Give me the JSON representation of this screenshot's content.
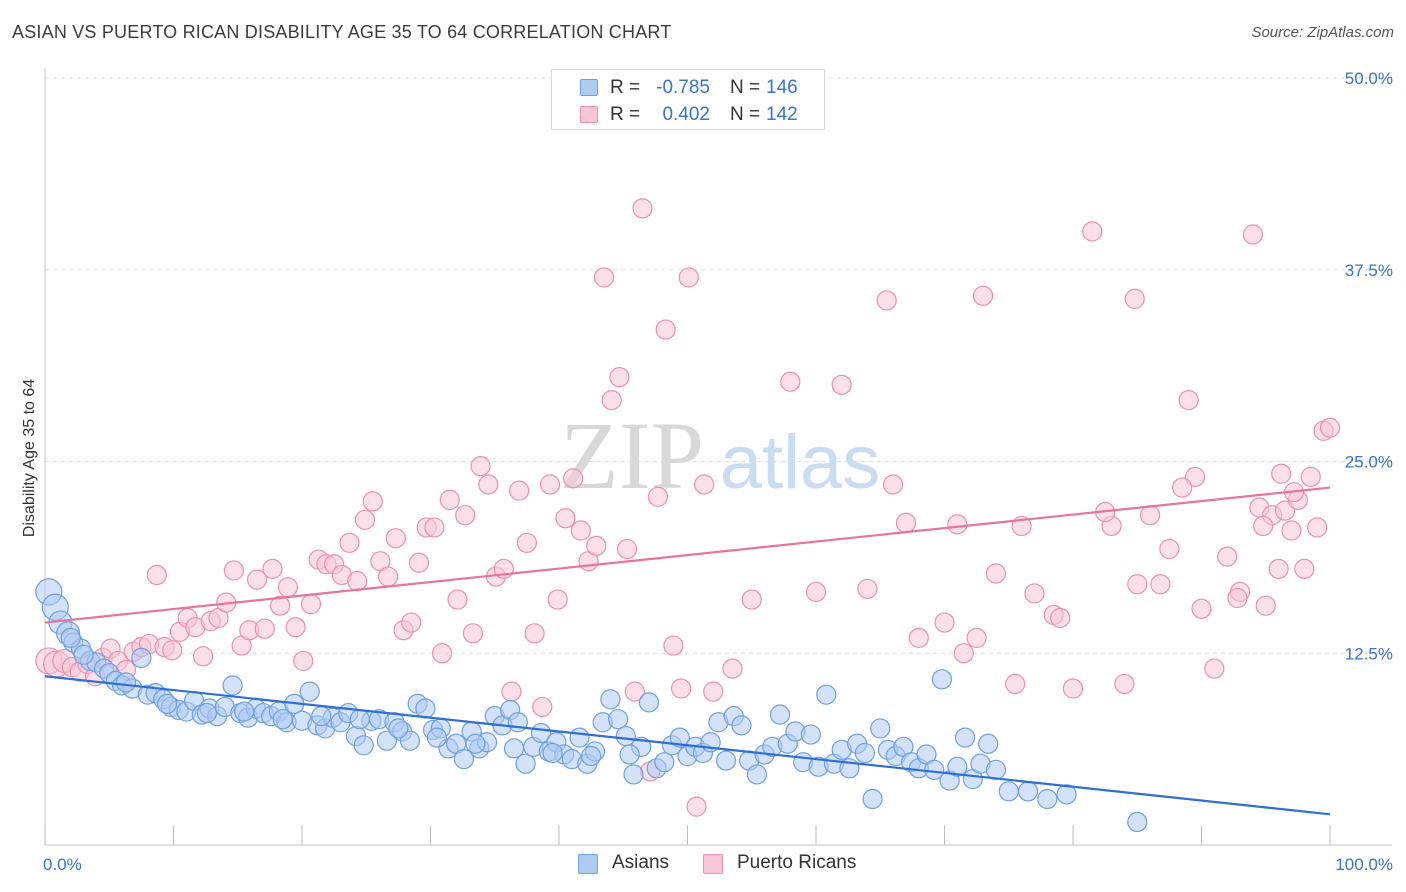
{
  "title": "ASIAN VS PUERTO RICAN DISABILITY AGE 35 TO 64 CORRELATION CHART",
  "source": "Source: ZipAtlas.com",
  "watermark": {
    "zip": "ZIP",
    "atlas": "atlas"
  },
  "legend": {
    "r_label": "R =",
    "n_label": "N =",
    "asians": {
      "r": "-0.785",
      "n": "146"
    },
    "puerto_ricans": {
      "r": "0.402",
      "n": "142"
    }
  },
  "colors": {
    "asians_fill": "#aecbf2",
    "asians_stroke": "#6fa0e0",
    "asians_line": "#2f6fd3",
    "pr_fill": "#f8c6d6",
    "pr_stroke": "#ee8fb0",
    "pr_line": "#e8739d",
    "tick_text": "#3a73c8",
    "grid": "#dddddd"
  },
  "chart_data": {
    "type": "scatter",
    "title": "ASIAN VS PUERTO RICAN DISABILITY AGE 35 TO 64 CORRELATION CHART",
    "xlabel": "",
    "ylabel": "Disability Age 35 to 64",
    "xlim": [
      0,
      100
    ],
    "ylim": [
      0,
      50
    ],
    "x_tick_labels": [
      "0.0%",
      "100.0%"
    ],
    "y_tick_labels": [
      "12.5%",
      "25.0%",
      "37.5%",
      "50.0%"
    ],
    "y_ticks": [
      12.5,
      25.0,
      37.5,
      50.0
    ],
    "grid": true,
    "legend_position": "top-center",
    "series": [
      {
        "name": "Asians",
        "r": -0.785,
        "n": 146,
        "trend": {
          "x": [
            0,
            100
          ],
          "y": [
            11.0,
            2.0
          ]
        },
        "points": [
          [
            0.3,
            16.5
          ],
          [
            0.8,
            15.5
          ],
          [
            1.2,
            14.5
          ],
          [
            1.8,
            13.8
          ],
          [
            2.2,
            13.2
          ],
          [
            2.8,
            12.8
          ],
          [
            3.5,
            12.0
          ],
          [
            4.0,
            11.9
          ],
          [
            4.6,
            11.5
          ],
          [
            5.0,
            11.2
          ],
          [
            5.5,
            10.7
          ],
          [
            6.0,
            10.4
          ],
          [
            6.8,
            10.2
          ],
          [
            7.5,
            12.2
          ],
          [
            8.0,
            9.8
          ],
          [
            8.6,
            9.9
          ],
          [
            9.2,
            9.5
          ],
          [
            9.8,
            9.0
          ],
          [
            10.4,
            8.8
          ],
          [
            11.0,
            8.7
          ],
          [
            11.6,
            9.4
          ],
          [
            12.2,
            8.5
          ],
          [
            12.8,
            8.9
          ],
          [
            13.4,
            8.4
          ],
          [
            14.0,
            9.0
          ],
          [
            14.6,
            10.4
          ],
          [
            15.2,
            8.6
          ],
          [
            15.8,
            8.3
          ],
          [
            16.4,
            8.9
          ],
          [
            17.0,
            8.6
          ],
          [
            17.6,
            8.4
          ],
          [
            18.2,
            8.7
          ],
          [
            18.8,
            8.0
          ],
          [
            19.4,
            9.2
          ],
          [
            20.0,
            8.1
          ],
          [
            20.6,
            10.0
          ],
          [
            21.2,
            7.8
          ],
          [
            21.8,
            7.6
          ],
          [
            22.4,
            8.3
          ],
          [
            23.0,
            8.0
          ],
          [
            23.6,
            8.6
          ],
          [
            24.2,
            7.1
          ],
          [
            24.8,
            6.5
          ],
          [
            25.4,
            8.1
          ],
          [
            26.0,
            8.2
          ],
          [
            26.6,
            6.8
          ],
          [
            27.2,
            8.0
          ],
          [
            27.8,
            7.4
          ],
          [
            28.4,
            6.8
          ],
          [
            29.0,
            9.2
          ],
          [
            29.6,
            8.9
          ],
          [
            30.2,
            7.5
          ],
          [
            30.8,
            7.6
          ],
          [
            31.4,
            6.3
          ],
          [
            32.0,
            6.6
          ],
          [
            32.6,
            5.6
          ],
          [
            33.2,
            7.4
          ],
          [
            33.8,
            6.3
          ],
          [
            34.4,
            6.7
          ],
          [
            35.0,
            8.4
          ],
          [
            35.6,
            7.8
          ],
          [
            36.2,
            8.8
          ],
          [
            36.8,
            8.0
          ],
          [
            37.4,
            5.3
          ],
          [
            38.0,
            6.4
          ],
          [
            38.6,
            7.3
          ],
          [
            39.2,
            6.1
          ],
          [
            39.8,
            6.7
          ],
          [
            40.4,
            5.9
          ],
          [
            41.0,
            5.6
          ],
          [
            41.6,
            7.0
          ],
          [
            42.2,
            5.3
          ],
          [
            42.8,
            6.1
          ],
          [
            43.4,
            8.0
          ],
          [
            44.0,
            9.5
          ],
          [
            44.6,
            8.2
          ],
          [
            45.2,
            7.1
          ],
          [
            45.8,
            4.6
          ],
          [
            46.4,
            6.4
          ],
          [
            47.0,
            9.3
          ],
          [
            47.6,
            5.0
          ],
          [
            48.2,
            5.4
          ],
          [
            48.8,
            6.5
          ],
          [
            49.4,
            7.0
          ],
          [
            50.0,
            5.8
          ],
          [
            50.6,
            6.4
          ],
          [
            51.2,
            6.0
          ],
          [
            51.8,
            6.7
          ],
          [
            52.4,
            8.0
          ],
          [
            53.0,
            5.5
          ],
          [
            53.6,
            8.4
          ],
          [
            54.2,
            7.8
          ],
          [
            54.8,
            5.5
          ],
          [
            55.4,
            4.6
          ],
          [
            56.0,
            5.9
          ],
          [
            56.6,
            6.4
          ],
          [
            57.2,
            8.5
          ],
          [
            57.8,
            6.6
          ],
          [
            58.4,
            7.4
          ],
          [
            59.0,
            5.4
          ],
          [
            59.6,
            7.2
          ],
          [
            60.2,
            5.1
          ],
          [
            60.8,
            9.8
          ],
          [
            61.4,
            5.3
          ],
          [
            62.0,
            6.2
          ],
          [
            62.6,
            5.0
          ],
          [
            63.2,
            6.6
          ],
          [
            63.8,
            6.0
          ],
          [
            64.4,
            3.0
          ],
          [
            65.0,
            7.6
          ],
          [
            65.6,
            6.2
          ],
          [
            66.2,
            5.8
          ],
          [
            66.8,
            6.4
          ],
          [
            67.4,
            5.4
          ],
          [
            68.0,
            5.0
          ],
          [
            68.6,
            5.9
          ],
          [
            69.2,
            4.9
          ],
          [
            69.8,
            10.8
          ],
          [
            70.4,
            4.2
          ],
          [
            71.0,
            5.1
          ],
          [
            71.6,
            7.0
          ],
          [
            72.2,
            4.3
          ],
          [
            72.8,
            5.3
          ],
          [
            73.4,
            6.6
          ],
          [
            74.0,
            4.9
          ],
          [
            75.0,
            3.5
          ],
          [
            76.5,
            3.5
          ],
          [
            78.0,
            3.0
          ],
          [
            79.5,
            3.3
          ],
          [
            85.0,
            1.5
          ],
          [
            2.0,
            13.5
          ],
          [
            3.0,
            12.4
          ],
          [
            6.3,
            10.6
          ],
          [
            9.5,
            9.2
          ],
          [
            12.6,
            8.6
          ],
          [
            15.5,
            8.7
          ],
          [
            18.5,
            8.2
          ],
          [
            21.5,
            8.4
          ],
          [
            24.5,
            8.2
          ],
          [
            27.5,
            7.6
          ],
          [
            30.5,
            7.0
          ],
          [
            33.5,
            6.6
          ],
          [
            36.5,
            6.3
          ],
          [
            39.5,
            6.0
          ],
          [
            42.5,
            5.8
          ],
          [
            45.5,
            5.9
          ]
        ]
      },
      {
        "name": "Puerto Ricans",
        "r": 0.402,
        "n": 142,
        "trend": {
          "x": [
            0,
            100
          ],
          "y": [
            14.5,
            23.3
          ]
        },
        "points": [
          [
            0.3,
            12.0
          ],
          [
            0.9,
            11.8
          ],
          [
            1.5,
            12.0
          ],
          [
            2.1,
            11.6
          ],
          [
            2.7,
            11.3
          ],
          [
            3.3,
            11.8
          ],
          [
            3.9,
            11.0
          ],
          [
            4.5,
            12.2
          ],
          [
            5.1,
            12.8
          ],
          [
            5.7,
            12.0
          ],
          [
            6.3,
            11.4
          ],
          [
            6.9,
            12.6
          ],
          [
            7.5,
            12.9
          ],
          [
            8.1,
            13.1
          ],
          [
            8.7,
            17.6
          ],
          [
            9.3,
            12.9
          ],
          [
            9.9,
            12.7
          ],
          [
            10.5,
            13.9
          ],
          [
            11.1,
            14.8
          ],
          [
            11.7,
            14.2
          ],
          [
            12.3,
            12.3
          ],
          [
            12.9,
            14.6
          ],
          [
            13.5,
            14.8
          ],
          [
            14.1,
            15.8
          ],
          [
            14.7,
            17.9
          ],
          [
            15.3,
            13.0
          ],
          [
            15.9,
            14.0
          ],
          [
            16.5,
            17.3
          ],
          [
            17.1,
            14.1
          ],
          [
            17.7,
            18.0
          ],
          [
            18.3,
            15.6
          ],
          [
            18.9,
            16.8
          ],
          [
            19.5,
            14.2
          ],
          [
            20.1,
            12.0
          ],
          [
            20.7,
            15.7
          ],
          [
            21.3,
            18.6
          ],
          [
            21.9,
            18.3
          ],
          [
            22.5,
            18.3
          ],
          [
            23.1,
            17.6
          ],
          [
            23.7,
            19.7
          ],
          [
            24.3,
            17.2
          ],
          [
            24.9,
            21.2
          ],
          [
            25.5,
            22.4
          ],
          [
            26.1,
            18.5
          ],
          [
            26.7,
            17.5
          ],
          [
            27.3,
            20.0
          ],
          [
            27.9,
            14.0
          ],
          [
            28.5,
            14.5
          ],
          [
            29.1,
            18.4
          ],
          [
            29.7,
            20.7
          ],
          [
            30.3,
            20.7
          ],
          [
            30.9,
            12.5
          ],
          [
            31.5,
            22.5
          ],
          [
            32.1,
            16.0
          ],
          [
            32.7,
            21.5
          ],
          [
            33.3,
            13.8
          ],
          [
            33.9,
            24.7
          ],
          [
            34.5,
            23.5
          ],
          [
            35.1,
            17.5
          ],
          [
            35.7,
            18.0
          ],
          [
            36.3,
            10.0
          ],
          [
            36.9,
            23.1
          ],
          [
            37.5,
            19.7
          ],
          [
            38.1,
            13.8
          ],
          [
            38.7,
            9.0
          ],
          [
            39.3,
            23.5
          ],
          [
            39.9,
            16.0
          ],
          [
            40.5,
            21.3
          ],
          [
            41.1,
            23.9
          ],
          [
            41.7,
            20.5
          ],
          [
            42.3,
            18.5
          ],
          [
            42.9,
            19.5
          ],
          [
            43.5,
            37.0
          ],
          [
            44.1,
            29.0
          ],
          [
            44.7,
            30.5
          ],
          [
            45.3,
            19.3
          ],
          [
            45.9,
            10.0
          ],
          [
            46.5,
            41.5
          ],
          [
            47.1,
            4.8
          ],
          [
            47.7,
            22.7
          ],
          [
            48.3,
            33.6
          ],
          [
            48.9,
            13.0
          ],
          [
            49.5,
            10.2
          ],
          [
            50.1,
            37.0
          ],
          [
            50.7,
            2.5
          ],
          [
            51.3,
            23.5
          ],
          [
            52.0,
            10.0
          ],
          [
            53.5,
            11.5
          ],
          [
            55.0,
            16.0
          ],
          [
            58.0,
            30.2
          ],
          [
            60.0,
            16.5
          ],
          [
            62.0,
            30.0
          ],
          [
            64.0,
            16.7
          ],
          [
            65.5,
            35.5
          ],
          [
            66.0,
            23.5
          ],
          [
            67.0,
            21.0
          ],
          [
            68.0,
            13.5
          ],
          [
            70.0,
            14.5
          ],
          [
            71.5,
            12.5
          ],
          [
            73.0,
            35.8
          ],
          [
            74.0,
            17.7
          ],
          [
            75.5,
            10.5
          ],
          [
            77.0,
            16.4
          ],
          [
            78.5,
            15.0
          ],
          [
            80.0,
            10.2
          ],
          [
            81.5,
            40.0
          ],
          [
            83.0,
            20.8
          ],
          [
            84.0,
            10.5
          ],
          [
            85.0,
            17.0
          ],
          [
            86.0,
            21.5
          ],
          [
            87.5,
            19.3
          ],
          [
            89.0,
            29.0
          ],
          [
            90.0,
            15.4
          ],
          [
            91.0,
            11.5
          ],
          [
            92.0,
            18.8
          ],
          [
            93.0,
            16.5
          ],
          [
            94.0,
            39.8
          ],
          [
            94.5,
            22.0
          ],
          [
            95.0,
            15.6
          ],
          [
            95.5,
            21.5
          ],
          [
            96.0,
            18.0
          ],
          [
            96.5,
            21.8
          ],
          [
            97.0,
            20.5
          ],
          [
            97.5,
            22.5
          ],
          [
            98.0,
            18.0
          ],
          [
            98.5,
            24.0
          ],
          [
            99.0,
            20.7
          ],
          [
            99.5,
            27.0
          ],
          [
            100.0,
            27.2
          ],
          [
            97.2,
            23.0
          ],
          [
            96.2,
            24.2
          ],
          [
            94.8,
            20.8
          ],
          [
            92.8,
            16.1
          ],
          [
            89.5,
            24.0
          ],
          [
            88.5,
            23.3
          ],
          [
            86.8,
            17.0
          ],
          [
            84.8,
            35.6
          ],
          [
            82.5,
            21.7
          ],
          [
            79.0,
            14.8
          ],
          [
            76.0,
            20.8
          ],
          [
            72.5,
            13.5
          ],
          [
            71.0,
            20.9
          ]
        ]
      }
    ]
  }
}
